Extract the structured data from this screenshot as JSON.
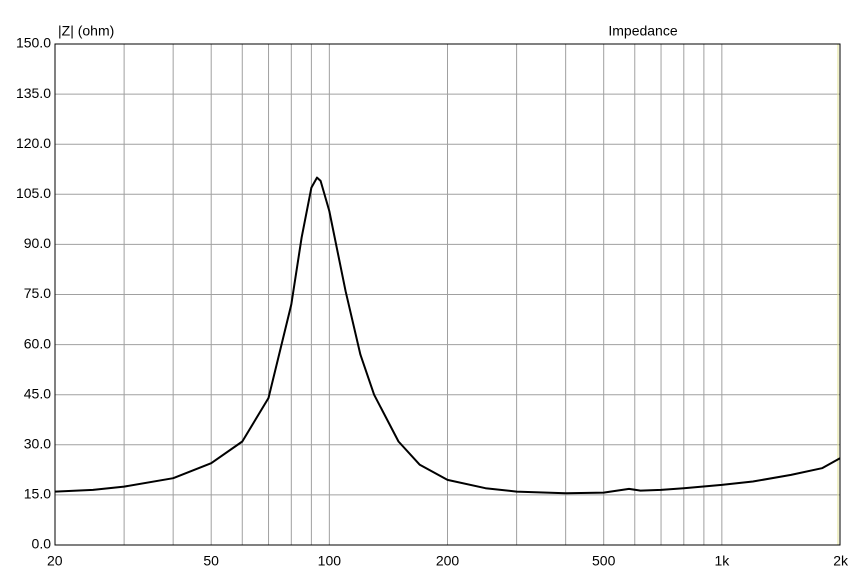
{
  "chart_data": {
    "type": "line",
    "title": "Impedance",
    "y_label": "|Z| (ohm)",
    "x_scale": "log",
    "xlim": [
      20,
      2000
    ],
    "xticks": [
      20,
      50,
      100,
      200,
      500,
      {
        "value": 1000,
        "label": "1k"
      },
      {
        "value": 2000,
        "label": "2k"
      }
    ],
    "minor_xticks": [
      30,
      40,
      60,
      70,
      80,
      90,
      300,
      400,
      600,
      700,
      800,
      900
    ],
    "ylim": [
      0,
      150
    ],
    "yticks": [
      {
        "value": 0,
        "label": "0.0"
      },
      {
        "value": 15,
        "label": "15.0"
      },
      {
        "value": 30,
        "label": "30.0"
      },
      {
        "value": 45,
        "label": "45.0"
      },
      {
        "value": 60,
        "label": "60.0"
      },
      {
        "value": 75,
        "label": "75.0"
      },
      {
        "value": 90,
        "label": "90.0"
      },
      {
        "value": 105,
        "label": "105.0"
      },
      {
        "value": 120,
        "label": "120.0"
      },
      {
        "value": 135,
        "label": "135.0"
      },
      {
        "value": 150,
        "label": "150.0"
      }
    ],
    "grid": true,
    "series": [
      {
        "color": "#000000",
        "x": [
          20,
          25,
          30,
          40,
          50,
          60,
          70,
          80,
          85,
          90,
          93,
          95,
          100,
          110,
          120,
          130,
          150,
          170,
          200,
          250,
          300,
          400,
          500,
          580,
          620,
          700,
          800,
          1000,
          1200,
          1500,
          1800,
          2000
        ],
        "values": [
          16,
          16.5,
          17.5,
          20,
          24.5,
          31,
          44,
          72,
          92,
          107,
          110,
          109,
          100,
          76,
          57,
          45,
          31,
          24,
          19.5,
          17,
          16,
          15.5,
          15.7,
          16.8,
          16.3,
          16.5,
          17,
          18,
          19,
          21,
          23,
          26
        ]
      }
    ]
  }
}
